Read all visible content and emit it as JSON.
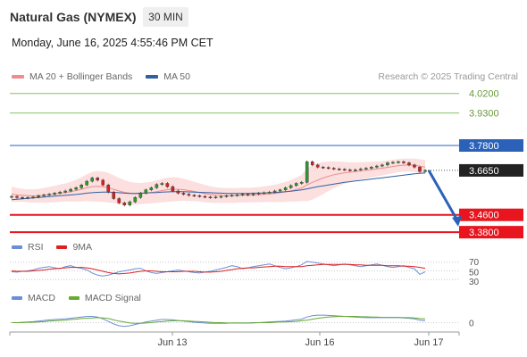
{
  "header": {
    "title": "Natural Gas (NYMEX)",
    "timeframe": "30 MIN",
    "datetime": "Monday, June 16, 2025 4:55:46 PM CET"
  },
  "legend_main": {
    "items": [
      {
        "label": "MA 20 + Bollinger Bands",
        "color": "#f08c8c"
      },
      {
        "label": "MA 50",
        "color": "#3060a0"
      }
    ],
    "credit": "Research © 2025 Trading Central"
  },
  "legend_rsi": {
    "items": [
      {
        "label": "RSI",
        "color": "#6b8fd6"
      },
      {
        "label": "9MA",
        "color": "#e02020"
      }
    ]
  },
  "legend_macd": {
    "items": [
      {
        "label": "MACD",
        "color": "#6b8fd6"
      },
      {
        "label": "MACD Signal",
        "color": "#66aa33"
      }
    ]
  },
  "colors": {
    "resistance": "#8cc06a",
    "pivot": "#2b62b8",
    "support": "#e8141e",
    "bollinger_fill": "#fcd9d9",
    "ma20": "#f08c8c",
    "ma50": "#3060a0",
    "arrow": "#2b62b8"
  },
  "chart_data": [
    {
      "type": "candlestick",
      "title": "Natural Gas (NYMEX)",
      "timeframe": "30 MIN",
      "x_ticks": [
        "Jun 13",
        "Jun 16",
        "Jun 17"
      ],
      "y_range": [
        3.36,
        4.06
      ],
      "levels": [
        {
          "value": 4.02,
          "label": "4.0200",
          "kind": "resistance"
        },
        {
          "value": 3.93,
          "label": "3.9300",
          "kind": "resistance"
        },
        {
          "value": 3.78,
          "label": "3.7800",
          "kind": "pivot"
        },
        {
          "value": 3.665,
          "label": "3.6650",
          "kind": "last"
        },
        {
          "value": 3.46,
          "label": "3.4600",
          "kind": "support"
        },
        {
          "value": 3.38,
          "label": "3.3800",
          "kind": "support"
        }
      ],
      "close_path": [
        3.545,
        3.54,
        3.538,
        3.54,
        3.542,
        3.548,
        3.552,
        3.555,
        3.56,
        3.565,
        3.57,
        3.578,
        3.585,
        3.598,
        3.615,
        3.63,
        3.62,
        3.598,
        3.565,
        3.535,
        3.515,
        3.505,
        3.52,
        3.54,
        3.56,
        3.575,
        3.585,
        3.6,
        3.605,
        3.59,
        3.57,
        3.56,
        3.555,
        3.55,
        3.548,
        3.545,
        3.542,
        3.54,
        3.542,
        3.545,
        3.548,
        3.55,
        3.552,
        3.555,
        3.552,
        3.556,
        3.56,
        3.562,
        3.565,
        3.57,
        3.575,
        3.585,
        3.595,
        3.605,
        3.61,
        3.705,
        3.69,
        3.68,
        3.678,
        3.675,
        3.672,
        3.67,
        3.668,
        3.665,
        3.668,
        3.672,
        3.675,
        3.68,
        3.685,
        3.69,
        3.7,
        3.702,
        3.705,
        3.7,
        3.69,
        3.68,
        3.66,
        3.665
      ],
      "ma20": [
        3.555,
        3.552,
        3.55,
        3.548,
        3.547,
        3.548,
        3.55,
        3.553,
        3.556,
        3.56,
        3.563,
        3.567,
        3.572,
        3.578,
        3.585,
        3.59,
        3.592,
        3.59,
        3.585,
        3.578,
        3.57,
        3.564,
        3.56,
        3.558,
        3.558,
        3.56,
        3.563,
        3.567,
        3.572,
        3.576,
        3.578,
        3.578,
        3.576,
        3.572,
        3.568,
        3.563,
        3.558,
        3.554,
        3.551,
        3.55,
        3.549,
        3.549,
        3.55,
        3.551,
        3.551,
        3.552,
        3.553,
        3.555,
        3.557,
        3.559,
        3.562,
        3.566,
        3.571,
        3.577,
        3.584,
        3.598,
        3.61,
        3.62,
        3.63,
        3.638,
        3.645,
        3.65,
        3.654,
        3.657,
        3.66,
        3.663,
        3.666,
        3.669,
        3.672,
        3.675,
        3.679,
        3.683,
        3.687,
        3.689,
        3.69,
        3.689,
        3.684,
        3.68
      ],
      "ma50": [
        3.53,
        3.532,
        3.534,
        3.536,
        3.538,
        3.54,
        3.542,
        3.544,
        3.546,
        3.548,
        3.55,
        3.552,
        3.554,
        3.557,
        3.56,
        3.562,
        3.564,
        3.565,
        3.565,
        3.564,
        3.562,
        3.56,
        3.559,
        3.559,
        3.56,
        3.561,
        3.562,
        3.563,
        3.565,
        3.566,
        3.567,
        3.567,
        3.567,
        3.566,
        3.565,
        3.564,
        3.563,
        3.562,
        3.561,
        3.56,
        3.559,
        3.559,
        3.559,
        3.559,
        3.559,
        3.56,
        3.56,
        3.561,
        3.562,
        3.563,
        3.565,
        3.567,
        3.569,
        3.572,
        3.575,
        3.58,
        3.585,
        3.59,
        3.594,
        3.598,
        3.602,
        3.606,
        3.61,
        3.613,
        3.616,
        3.619,
        3.622,
        3.625,
        3.628,
        3.631,
        3.634,
        3.637,
        3.64,
        3.643,
        3.646,
        3.649,
        3.651,
        3.653
      ],
      "bb_width": [
        0.035,
        0.032,
        0.03,
        0.03,
        0.031,
        0.032,
        0.034,
        0.036,
        0.038,
        0.04,
        0.042,
        0.045,
        0.05,
        0.056,
        0.062,
        0.068,
        0.07,
        0.07,
        0.068,
        0.064,
        0.06,
        0.056,
        0.052,
        0.05,
        0.049,
        0.049,
        0.05,
        0.052,
        0.054,
        0.056,
        0.056,
        0.054,
        0.051,
        0.048,
        0.045,
        0.042,
        0.04,
        0.038,
        0.036,
        0.035,
        0.034,
        0.034,
        0.034,
        0.034,
        0.034,
        0.034,
        0.035,
        0.036,
        0.038,
        0.04,
        0.043,
        0.046,
        0.05,
        0.055,
        0.06,
        0.075,
        0.08,
        0.078,
        0.074,
        0.068,
        0.062,
        0.056,
        0.05,
        0.045,
        0.042,
        0.04,
        0.038,
        0.036,
        0.034,
        0.033,
        0.032,
        0.031,
        0.03,
        0.03,
        0.03,
        0.031,
        0.032,
        0.033
      ],
      "projection_to": 3.41
    },
    {
      "type": "line",
      "name": "RSI",
      "levels": [
        70,
        50,
        30
      ],
      "y_range": [
        20,
        80
      ],
      "series": [
        {
          "name": "RSI",
          "values": [
            48,
            47,
            49,
            50,
            52,
            56,
            58,
            60,
            57,
            55,
            60,
            62,
            58,
            56,
            52,
            45,
            40,
            38,
            40,
            44,
            48,
            50,
            52,
            55,
            56,
            50,
            46,
            44,
            46,
            48,
            50,
            52,
            50,
            48,
            46,
            45,
            47,
            49,
            52,
            55,
            58,
            62,
            60,
            55,
            57,
            60,
            62,
            64,
            66,
            62,
            58,
            55,
            57,
            60,
            64,
            72,
            70,
            68,
            66,
            64,
            62,
            64,
            66,
            64,
            62,
            60,
            62,
            64,
            66,
            63,
            60,
            58,
            60,
            62,
            58,
            55,
            42,
            48
          ]
        },
        {
          "name": "9MA",
          "values": [
            50,
            49,
            49,
            49,
            50,
            51,
            52,
            54,
            55,
            56,
            57,
            58,
            58,
            58,
            57,
            55,
            52,
            49,
            46,
            44,
            43,
            44,
            45,
            47,
            49,
            50,
            50,
            49,
            48,
            48,
            48,
            48,
            49,
            49,
            49,
            48,
            47,
            47,
            48,
            49,
            51,
            53,
            55,
            56,
            57,
            57,
            58,
            59,
            60,
            61,
            61,
            60,
            60,
            60,
            60,
            62,
            63,
            64,
            65,
            65,
            65,
            65,
            65,
            65,
            64,
            64,
            63,
            63,
            63,
            63,
            62,
            62,
            62,
            61,
            61,
            60,
            58,
            56
          ]
        }
      ]
    },
    {
      "type": "line",
      "name": "MACD",
      "levels": [
        0
      ],
      "y_range": [
        -0.03,
        0.05
      ],
      "series": [
        {
          "name": "MACD",
          "values": [
            0.0,
            0.0,
            0.001,
            0.002,
            0.003,
            0.005,
            0.007,
            0.009,
            0.01,
            0.011,
            0.012,
            0.014,
            0.016,
            0.018,
            0.02,
            0.02,
            0.018,
            0.012,
            0.004,
            -0.004,
            -0.01,
            -0.012,
            -0.01,
            -0.006,
            -0.002,
            0.002,
            0.005,
            0.008,
            0.01,
            0.01,
            0.009,
            0.007,
            0.005,
            0.003,
            0.001,
            0.0,
            -0.001,
            -0.002,
            -0.002,
            -0.002,
            -0.002,
            -0.001,
            -0.001,
            -0.001,
            -0.001,
            0.0,
            0.0,
            0.001,
            0.002,
            0.003,
            0.004,
            0.005,
            0.007,
            0.009,
            0.011,
            0.018,
            0.022,
            0.024,
            0.024,
            0.023,
            0.022,
            0.021,
            0.02,
            0.019,
            0.018,
            0.017,
            0.016,
            0.016,
            0.016,
            0.016,
            0.016,
            0.016,
            0.016,
            0.015,
            0.014,
            0.012,
            0.008,
            0.006
          ]
        },
        {
          "name": "MACD Signal",
          "values": [
            0.0,
            0.0,
            0.0,
            0.001,
            0.001,
            0.002,
            0.003,
            0.005,
            0.006,
            0.007,
            0.008,
            0.01,
            0.011,
            0.013,
            0.014,
            0.015,
            0.016,
            0.015,
            0.013,
            0.009,
            0.005,
            0.002,
            -0.001,
            -0.002,
            -0.002,
            -0.001,
            0.0,
            0.002,
            0.003,
            0.005,
            0.006,
            0.006,
            0.006,
            0.005,
            0.004,
            0.003,
            0.002,
            0.001,
            0.0,
            0.0,
            -0.001,
            -0.001,
            -0.001,
            -0.001,
            -0.001,
            -0.001,
            0.0,
            0.0,
            0.0,
            0.001,
            0.002,
            0.002,
            0.003,
            0.004,
            0.006,
            0.008,
            0.011,
            0.014,
            0.016,
            0.018,
            0.019,
            0.02,
            0.02,
            0.02,
            0.02,
            0.019,
            0.019,
            0.018,
            0.018,
            0.017,
            0.017,
            0.017,
            0.017,
            0.016,
            0.016,
            0.015,
            0.013,
            0.012
          ]
        }
      ]
    }
  ]
}
